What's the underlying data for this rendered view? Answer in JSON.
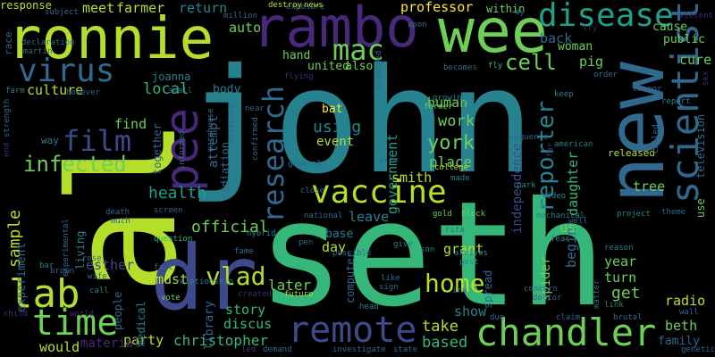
{
  "background": "#000000",
  "palette": [
    "#440154",
    "#482878",
    "#3e4989",
    "#31688e",
    "#26828e",
    "#1f9e89",
    "#35b779",
    "#6ece58",
    "#b5de2b",
    "#fde725"
  ],
  "words": [
    {
      "text": "john",
      "color": "#26828e"
    },
    {
      "text": "seth",
      "color": "#35b779"
    },
    {
      "text": "al",
      "color": "#b5de2b"
    },
    {
      "text": "new",
      "color": "#31688e"
    },
    {
      "text": "dr",
      "color": "#3e4989"
    },
    {
      "text": "ronnie",
      "color": "#b5de2b"
    },
    {
      "text": "rambo",
      "color": "#482878"
    },
    {
      "text": "wee",
      "color": "#6ece58"
    },
    {
      "text": "vaccine",
      "color": "#b5de2b"
    },
    {
      "text": "chandler",
      "color": "#6ece58"
    },
    {
      "text": "remote",
      "color": "#3e4989"
    },
    {
      "text": "scientist",
      "color": "#31688e"
    },
    {
      "text": "disease",
      "color": "#1f9e89"
    },
    {
      "text": "virus",
      "color": "#31688e"
    },
    {
      "text": "pee",
      "color": "#482878"
    },
    {
      "text": "research",
      "color": "#31688e"
    },
    {
      "text": "lab",
      "color": "#b5de2b"
    },
    {
      "text": "time",
      "color": "#6ece58"
    },
    {
      "text": "film",
      "color": "#3e4989"
    },
    {
      "text": "infected",
      "color": "#6ece58"
    },
    {
      "text": "vlad",
      "color": "#b5de2b"
    },
    {
      "text": "home",
      "color": "#b5de2b"
    },
    {
      "text": "mac",
      "color": "#6ece58"
    },
    {
      "text": "cell",
      "color": "#6ece58"
    },
    {
      "text": "reporter",
      "color": "#26828e"
    },
    {
      "text": "sample",
      "color": "#b5de2b"
    },
    {
      "text": "health",
      "color": "#1f9e89"
    },
    {
      "text": "official",
      "color": "#6ece58"
    },
    {
      "text": "professor",
      "color": "#fde725"
    },
    {
      "text": "meet",
      "color": "#b5de2b"
    },
    {
      "text": "farmer",
      "color": "#b5de2b"
    },
    {
      "text": "return",
      "color": "#26828e"
    },
    {
      "text": "local",
      "color": "#35b779"
    },
    {
      "text": "culture",
      "color": "#b5de2b"
    },
    {
      "text": "work",
      "color": "#6ece58"
    },
    {
      "text": "york",
      "color": "#6ece58"
    },
    {
      "text": "place",
      "color": "#6ece58"
    },
    {
      "text": "take",
      "color": "#b5de2b"
    },
    {
      "text": "based",
      "color": "#35b779"
    },
    {
      "text": "show",
      "color": "#26828e"
    },
    {
      "text": "christopher",
      "color": "#35b779"
    },
    {
      "text": "later",
      "color": "#6ece58"
    },
    {
      "text": "esther",
      "color": "#3e4989"
    },
    {
      "text": "experiment",
      "color": "#31688e"
    },
    {
      "text": "grant",
      "color": "#b5de2b"
    },
    {
      "text": "human",
      "color": "#6ece58"
    },
    {
      "text": "government",
      "color": "#1f9e89"
    },
    {
      "text": "independence",
      "color": "#3e4989"
    },
    {
      "text": "daughter",
      "color": "#35b779"
    },
    {
      "text": "tree",
      "color": "#6ece58"
    },
    {
      "text": "begin",
      "color": "#31688e"
    },
    {
      "text": "us",
      "color": "#6ece58"
    },
    {
      "text": "year",
      "color": "#6ece58"
    },
    {
      "text": "turn",
      "color": "#6ece58"
    },
    {
      "text": "get",
      "color": "#6ece58"
    },
    {
      "text": "beth",
      "color": "#6ece58"
    },
    {
      "text": "radio",
      "color": "#b5de2b"
    },
    {
      "text": "family",
      "color": "#31688e"
    },
    {
      "text": "cure",
      "color": "#6ece58"
    },
    {
      "text": "cause",
      "color": "#6ece58"
    },
    {
      "text": "public",
      "color": "#6ece58"
    },
    {
      "text": "pig",
      "color": "#6ece58"
    },
    {
      "text": "back",
      "color": "#31688e"
    },
    {
      "text": "woman",
      "color": "#6ece58"
    },
    {
      "text": "smith",
      "color": "#b5de2b"
    },
    {
      "text": "day",
      "color": "#b5de2b"
    },
    {
      "text": "must",
      "color": "#b5de2b"
    },
    {
      "text": "party",
      "color": "#b5de2b"
    },
    {
      "text": "would",
      "color": "#b5de2b"
    },
    {
      "text": "material",
      "color": "#482878"
    },
    {
      "text": "story",
      "color": "#35b779"
    },
    {
      "text": "discus",
      "color": "#35b779"
    },
    {
      "text": "event",
      "color": "#b5de2b"
    },
    {
      "text": "using",
      "color": "#26828e"
    },
    {
      "text": "united",
      "color": "#6ece58"
    },
    {
      "text": "also",
      "color": "#6ece58"
    },
    {
      "text": "auto",
      "color": "#6ece58"
    },
    {
      "text": "hand",
      "color": "#6ece58"
    },
    {
      "text": "body",
      "color": "#26828e"
    },
    {
      "text": "find",
      "color": "#6ece58"
    },
    {
      "text": "way",
      "color": "#26828e"
    },
    {
      "text": "base",
      "color": "#26828e"
    },
    {
      "text": "leave",
      "color": "#26828e"
    },
    {
      "text": "bat",
      "color": "#fde725"
    },
    {
      "text": "response",
      "color": "#b5de2b"
    },
    {
      "text": "joanna",
      "color": "#26828e"
    },
    {
      "text": "attempt",
      "color": "#31688e"
    },
    {
      "text": "together",
      "color": "#31688e"
    },
    {
      "text": "radiation",
      "color": "#31688e"
    },
    {
      "text": "library",
      "color": "#31688e"
    },
    {
      "text": "medical",
      "color": "#26828e"
    },
    {
      "text": "people",
      "color": "#31688e"
    },
    {
      "text": "living",
      "color": "#26828e"
    },
    {
      "text": "computer",
      "color": "#31688e"
    },
    {
      "text": "spider",
      "color": "#6ece58"
    },
    {
      "text": "spread",
      "color": "#31688e"
    },
    {
      "text": "television",
      "color": "#31688e"
    },
    {
      "text": "use",
      "color": "#6ece58"
    },
    {
      "text": "released",
      "color": "#b5de2b"
    },
    {
      "text": "within",
      "color": "#6ece58"
    },
    {
      "text": "hybrid",
      "color": "#26828e"
    },
    {
      "text": "world",
      "color": "#482878"
    },
    {
      "text": "vote",
      "color": "#6ece58"
    },
    {
      "text": "child",
      "color": "#482878"
    },
    {
      "text": "call",
      "color": "#26828e"
    },
    {
      "text": "fast",
      "color": "#31688e"
    },
    {
      "text": "question",
      "color": "#35b779"
    },
    {
      "text": "wife",
      "color": "#31688e"
    },
    {
      "text": "rose",
      "color": "#31688e"
    },
    {
      "text": "bar",
      "color": "#26828e"
    },
    {
      "text": "brutal",
      "color": "#31688e"
    },
    {
      "text": "claim",
      "color": "#31688e"
    },
    {
      "text": "wall",
      "color": "#31688e"
    },
    {
      "text": "link",
      "color": "#26828e"
    },
    {
      "text": "well",
      "color": "#31688e"
    },
    {
      "text": "sex",
      "color": "#482878"
    },
    {
      "text": "violent",
      "color": "#482878"
    },
    {
      "text": "fly",
      "color": "#35b779"
    },
    {
      "text": "becomes",
      "color": "#31688e"
    },
    {
      "text": "order",
      "color": "#31688e"
    },
    {
      "text": "connor",
      "color": "#31688e"
    },
    {
      "text": "report",
      "color": "#26828e"
    },
    {
      "text": "keep",
      "color": "#26828e"
    },
    {
      "text": "growing",
      "color": "#26828e"
    },
    {
      "text": "former",
      "color": "#6ece58"
    },
    {
      "text": "fear",
      "color": "#26828e"
    },
    {
      "text": "reason",
      "color": "#26828e"
    },
    {
      "text": "mechanical",
      "color": "#26828e"
    },
    {
      "text": "project",
      "color": "#26828e"
    },
    {
      "text": "theme",
      "color": "#31688e"
    },
    {
      "text": "doctor",
      "color": "#31688e"
    },
    {
      "text": "concern",
      "color": "#31688e"
    },
    {
      "text": "ira",
      "color": "#31688e"
    },
    {
      "text": "post",
      "color": "#26828e"
    },
    {
      "text": "son",
      "color": "#26828e"
    },
    {
      "text": "give",
      "color": "#26828e"
    },
    {
      "text": "rita",
      "color": "#31688e"
    },
    {
      "text": "block",
      "color": "#6ece58"
    },
    {
      "text": "gold",
      "color": "#6ece58"
    },
    {
      "text": "national",
      "color": "#31688e"
    },
    {
      "text": "made",
      "color": "#26828e"
    },
    {
      "text": "college",
      "color": "#b5de2b"
    },
    {
      "text": "american",
      "color": "#26828e"
    },
    {
      "text": "video",
      "color": "#26828e"
    },
    {
      "text": "park",
      "color": "#26828e"
    },
    {
      "text": "sequence",
      "color": "#31688e"
    },
    {
      "text": "site",
      "color": "#31688e"
    },
    {
      "text": "general",
      "color": "#31688e"
    },
    {
      "text": "close",
      "color": "#31688e"
    },
    {
      "text": "pen",
      "color": "#31688e"
    },
    {
      "text": "possible",
      "color": "#31688e"
    },
    {
      "text": "like",
      "color": "#31688e"
    },
    {
      "text": "sign",
      "color": "#31688e"
    },
    {
      "text": "head",
      "color": "#26828e"
    },
    {
      "text": "investigate",
      "color": "#31688e"
    },
    {
      "text": "state",
      "color": "#31688e"
    },
    {
      "text": "demand",
      "color": "#31688e"
    },
    {
      "text": "due",
      "color": "#31688e"
    },
    {
      "text": "arrives",
      "color": "#26828e"
    },
    {
      "text": "future",
      "color": "#b5de2b"
    },
    {
      "text": "created",
      "color": "#482878"
    },
    {
      "text": "led",
      "color": "#482878"
    },
    {
      "text": "relationship",
      "color": "#26828e"
    },
    {
      "text": "fame",
      "color": "#31688e"
    },
    {
      "text": "screen",
      "color": "#31688e"
    },
    {
      "text": "death",
      "color": "#31688e"
    },
    {
      "text": "much",
      "color": "#31688e"
    },
    {
      "text": "informed",
      "color": "#31688e"
    },
    {
      "text": "notebook",
      "color": "#31688e"
    },
    {
      "text": "confirmed",
      "color": "#31688e"
    },
    {
      "text": "exposure",
      "color": "#31688e"
    },
    {
      "text": "intended",
      "color": "#31688e"
    },
    {
      "text": "upon",
      "color": "#31688e"
    },
    {
      "text": "warehouse",
      "color": "#31688e"
    },
    {
      "text": "near",
      "color": "#31688e"
    },
    {
      "text": "flying",
      "color": "#482878"
    },
    {
      "text": "destroy",
      "color": "#b5de2b"
    },
    {
      "text": "news",
      "color": "#b5de2b"
    },
    {
      "text": "million",
      "color": "#31688e"
    },
    {
      "text": "subject",
      "color": "#31688e"
    },
    {
      "text": "dy",
      "color": "#31688e"
    },
    {
      "text": "try",
      "color": "#482878"
    },
    {
      "text": "martin",
      "color": "#31688e"
    },
    {
      "text": "declaration",
      "color": "#31688e"
    },
    {
      "text": "race",
      "color": "#31688e"
    },
    {
      "text": "farm",
      "color": "#26828e"
    },
    {
      "text": "however",
      "color": "#31688e"
    },
    {
      "text": "small",
      "color": "#31688e"
    },
    {
      "text": "strength",
      "color": "#31688e"
    },
    {
      "text": "brown",
      "color": "#31688e"
    },
    {
      "text": "experimental",
      "color": "#31688e"
    },
    {
      "text": "end",
      "color": "#482878"
    },
    {
      "text": "far",
      "color": "#482878"
    },
    {
      "text": "genetic",
      "color": "#31688e"
    },
    {
      "text": "matter",
      "color": "#31688e"
    },
    {
      "text": "called",
      "color": "#31688e"
    }
  ]
}
